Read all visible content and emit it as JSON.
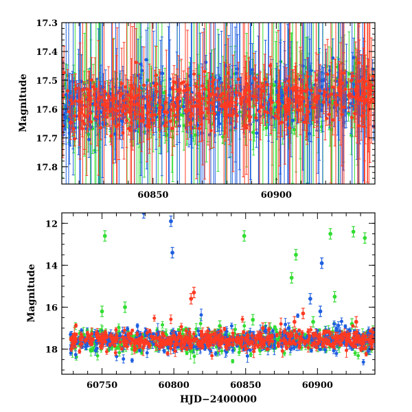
{
  "chart_data": [
    {
      "type": "scatter",
      "panel": "top",
      "title": "",
      "xlabel": "",
      "ylabel": "Magnitude",
      "xlim": [
        60813,
        60940
      ],
      "ylim": [
        17.86,
        17.3
      ],
      "y_inverted": true,
      "x_ticks": [
        60850,
        60900
      ],
      "x_tick_labels": [
        "60850",
        "60900"
      ],
      "y_ticks": [
        17.3,
        17.4,
        17.5,
        17.6,
        17.7,
        17.8
      ],
      "y_tick_labels": [
        "17.3",
        "17.4",
        "17.5",
        "17.6",
        "17.7",
        "17.8"
      ],
      "grid": false,
      "legend": "none",
      "series": [
        {
          "color": "#33dd33",
          "trend": [
            [
              60813,
              17.59
            ],
            [
              60835,
              17.59
            ],
            [
              60850,
              17.59
            ],
            [
              60870,
              17.58
            ],
            [
              60880,
              17.57
            ],
            [
              60895,
              17.57
            ],
            [
              60915,
              17.56
            ],
            [
              60940,
              17.54
            ]
          ],
          "scatter": 0.05,
          "spread": 0.42
        },
        {
          "color": "#1f5fe0",
          "trend": [
            [
              60813,
              17.59
            ],
            [
              60835,
              17.59
            ],
            [
              60850,
              17.59
            ],
            [
              60870,
              17.58
            ],
            [
              60880,
              17.57
            ],
            [
              60895,
              17.57
            ],
            [
              60915,
              17.56
            ],
            [
              60940,
              17.54
            ]
          ],
          "scatter": 0.05,
          "spread": 0.42
        },
        {
          "color": "#ff3a22",
          "trend": [
            [
              60813,
              17.59
            ],
            [
              60835,
              17.59
            ],
            [
              60850,
              17.59
            ],
            [
              60870,
              17.58
            ],
            [
              60880,
              17.57
            ],
            [
              60895,
              17.57
            ],
            [
              60915,
              17.56
            ],
            [
              60940,
              17.54
            ]
          ],
          "scatter": 0.045,
          "spread": 0.38
        }
      ]
    },
    {
      "type": "scatter",
      "panel": "bottom",
      "title": "",
      "xlabel": "HJD−2400000",
      "ylabel": "Magnitude",
      "xlim": [
        60722,
        60940
      ],
      "ylim": [
        19.2,
        11.5
      ],
      "y_inverted": true,
      "x_ticks": [
        60750,
        60800,
        60850,
        60900
      ],
      "x_tick_labels": [
        "60750",
        "60800",
        "60850",
        "60900"
      ],
      "y_ticks": [
        12,
        14,
        16,
        18
      ],
      "y_tick_labels": [
        "12",
        "14",
        "16",
        "18"
      ],
      "grid": false,
      "legend": "none",
      "series": [
        {
          "color": "#33dd33",
          "baseline": 17.6,
          "scatter": 0.25,
          "outliers": [
            [
              60752,
              12.6
            ],
            [
              60750,
              16.2
            ],
            [
              60766,
              16.0
            ],
            [
              60849,
              12.6
            ],
            [
              60855,
              16.6
            ],
            [
              60882,
              14.6
            ],
            [
              60885,
              13.5
            ],
            [
              60897,
              16.7
            ],
            [
              60909,
              12.5
            ],
            [
              60912,
              15.5
            ],
            [
              60925,
              12.4
            ],
            [
              60933,
              12.7
            ],
            [
              60924,
              16.8
            ],
            [
              60867,
              17.0
            ],
            [
              60832,
              16.9
            ]
          ]
        },
        {
          "color": "#1f5fe0",
          "baseline": 17.6,
          "scatter": 0.25,
          "outliers": [
            [
              60779,
              11.5
            ],
            [
              60798,
              11.9
            ],
            [
              60799,
              13.4
            ],
            [
              60895,
              15.6
            ],
            [
              60903,
              13.9
            ],
            [
              60902,
              16.2
            ],
            [
              60880,
              17.0
            ]
          ]
        },
        {
          "color": "#ff3a22",
          "baseline": 17.6,
          "scatter": 0.22,
          "outliers": [
            [
              60812,
              15.6
            ],
            [
              60814,
              15.3
            ],
            [
              60890,
              16.3
            ],
            [
              60884,
              16.7
            ],
            [
              60927,
              16.7
            ],
            [
              60862,
              17.0
            ]
          ]
        }
      ]
    }
  ]
}
